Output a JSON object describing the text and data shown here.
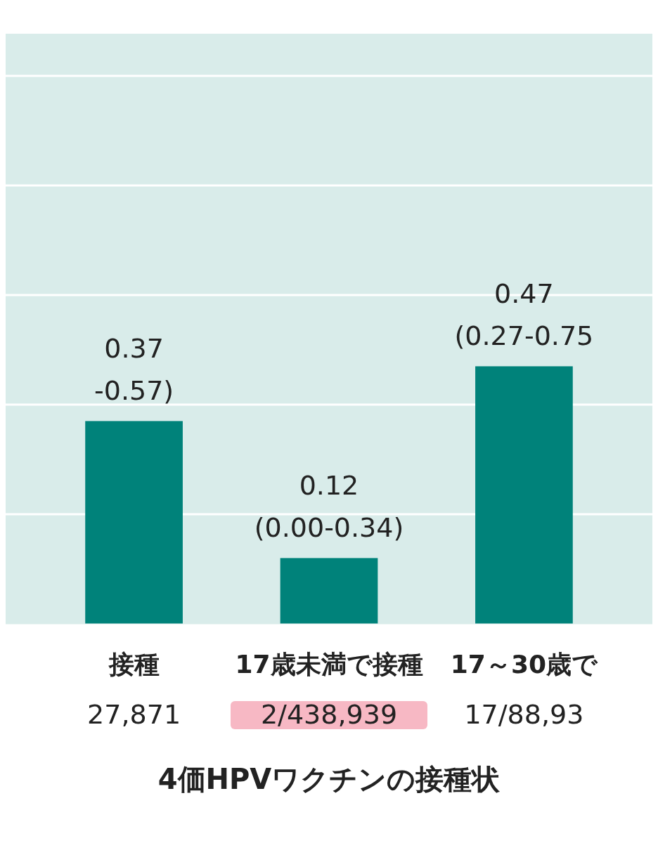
{
  "chart_data": {
    "type": "bar",
    "xlabel": "4価HPVワクチンの接種状",
    "categories": [
      "接種",
      "17歳未満で接種",
      "17～30歳で"
    ],
    "values": [
      0.37,
      0.12,
      0.47
    ],
    "color": "#00827a",
    "data_labels": true,
    "ylim": [
      0,
      1.0
    ],
    "yticks": [
      {
        "value": 0.2,
        "label": null
      },
      {
        "value": 0.4,
        "label": null
      },
      {
        "value": 0.6,
        "label": null
      },
      {
        "value": 0.8,
        "label": null
      },
      {
        "value": 1.0,
        "label": null
      }
    ],
    "grid": "y",
    "tick_labels": "x",
    "annotations": [
      {
        "text": "-0.57)",
        "x": "接種",
        "y": 0.37
      },
      {
        "text": "(0.00-0.34)",
        "x": "17歳未満で接種",
        "y": 0.12
      },
      {
        "text": "(0.27-0.75",
        "x": "17～30歳で",
        "y": 0.47
      },
      "27,871",
      "2/438,939",
      "17/88,93"
    ]
  }
}
